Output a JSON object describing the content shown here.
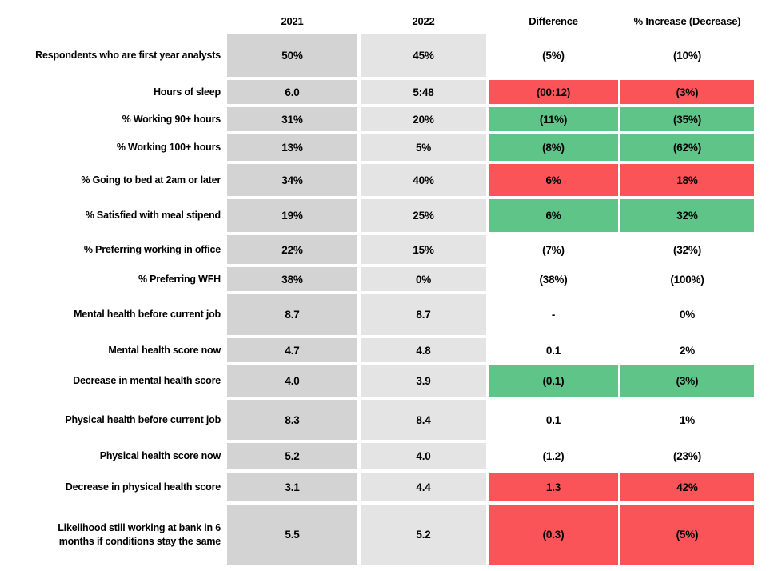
{
  "colors": {
    "highlight_red": "#FA5458",
    "highlight_green": "#5FC487",
    "col_2021_bg": "#D3D3D3",
    "col_2022_bg": "#E4E4E4",
    "text": "#000000",
    "background": "#FFFFFF"
  },
  "chart_data": {
    "type": "table",
    "column_headers": [
      "2021",
      "2022",
      "Difference",
      "% Increase (Decrease)"
    ],
    "rows": [
      {
        "label": "Respondents who are first year analysts",
        "v2021": "50%",
        "v2022": "45%",
        "difference": "(5%)",
        "pct_change": "(10%)",
        "highlight": "none"
      },
      {
        "label": "Hours of sleep",
        "v2021": "6.0",
        "v2022": "5:48",
        "difference": "(00:12)",
        "pct_change": "(3%)",
        "highlight": "red"
      },
      {
        "label": "% Working 90+ hours",
        "v2021": "31%",
        "v2022": "20%",
        "difference": "(11%)",
        "pct_change": "(35%)",
        "highlight": "green"
      },
      {
        "label": "% Working 100+ hours",
        "v2021": "13%",
        "v2022": "5%",
        "difference": "(8%)",
        "pct_change": "(62%)",
        "highlight": "green"
      },
      {
        "label": "% Going to bed at 2am or later",
        "v2021": "34%",
        "v2022": "40%",
        "difference": "6%",
        "pct_change": "18%",
        "highlight": "red"
      },
      {
        "label": "% Satisfied with meal stipend",
        "v2021": "19%",
        "v2022": "25%",
        "difference": "6%",
        "pct_change": "32%",
        "highlight": "green"
      },
      {
        "label": "% Preferring working in office",
        "v2021": "22%",
        "v2022": "15%",
        "difference": "(7%)",
        "pct_change": "(32%)",
        "highlight": "none"
      },
      {
        "label": "% Preferring WFH",
        "v2021": "38%",
        "v2022": "0%",
        "difference": "(38%)",
        "pct_change": "(100%)",
        "highlight": "none"
      },
      {
        "label": "Mental health before current job",
        "v2021": "8.7",
        "v2022": "8.7",
        "difference": "-",
        "pct_change": "0%",
        "highlight": "none"
      },
      {
        "label": "Mental health score now",
        "v2021": "4.7",
        "v2022": "4.8",
        "difference": "0.1",
        "pct_change": "2%",
        "highlight": "none"
      },
      {
        "label": "Decrease in mental health score",
        "v2021": "4.0",
        "v2022": "3.9",
        "difference": "(0.1)",
        "pct_change": "(3%)",
        "highlight": "green"
      },
      {
        "label": "Physical health before current job",
        "v2021": "8.3",
        "v2022": "8.4",
        "difference": "0.1",
        "pct_change": "1%",
        "highlight": "none"
      },
      {
        "label": "Physical health score now",
        "v2021": "5.2",
        "v2022": "4.0",
        "difference": "(1.2)",
        "pct_change": "(23%)",
        "highlight": "none"
      },
      {
        "label": "Decrease in physical health score",
        "v2021": "3.1",
        "v2022": "4.4",
        "difference": "1.3",
        "pct_change": "42%",
        "highlight": "red"
      },
      {
        "label": "Likelihood still working at bank in 6 months if conditions stay the same",
        "v2021": "5.5",
        "v2022": "5.2",
        "difference": "(0.3)",
        "pct_change": "(5%)",
        "highlight": "red"
      }
    ]
  }
}
